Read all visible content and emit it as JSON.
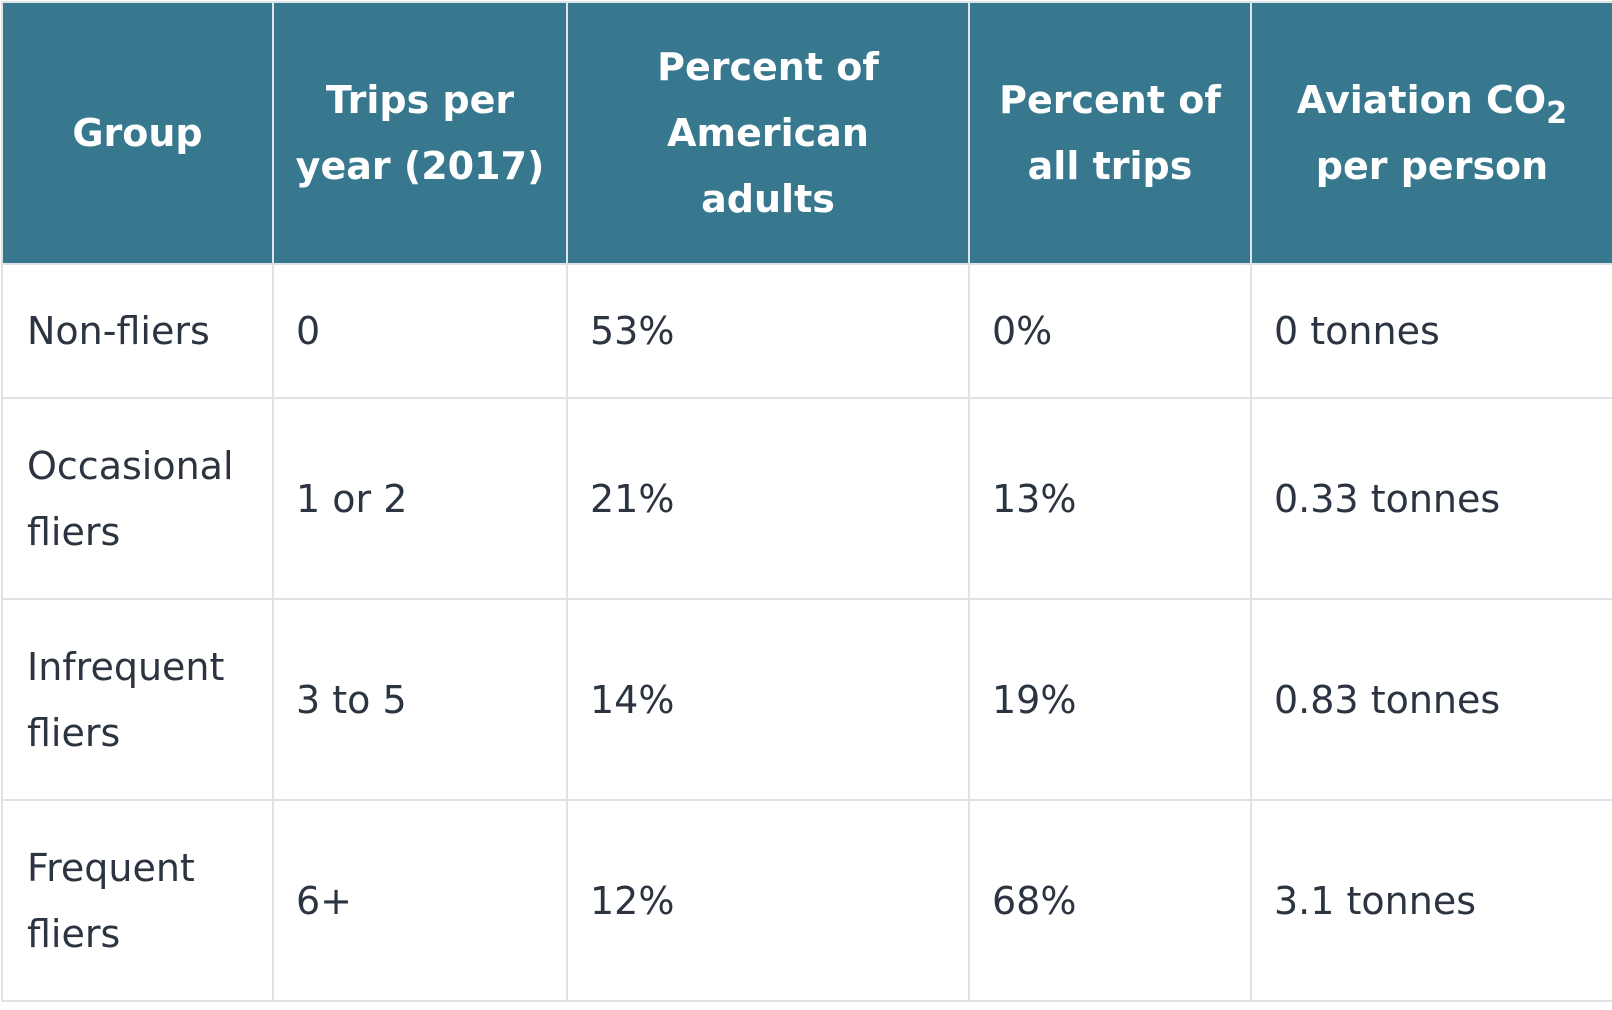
{
  "table": {
    "headers": [
      {
        "lines": [
          "Group"
        ]
      },
      {
        "lines": [
          "Trips per",
          "year (2017)"
        ]
      },
      {
        "lines": [
          "Percent of",
          "American",
          "adults"
        ]
      },
      {
        "lines": [
          "Percent of",
          "all trips"
        ]
      },
      {
        "line1_main": "Aviation CO",
        "line1_sub": "2",
        "line2": "per person"
      }
    ],
    "rows": [
      {
        "group": "Non-fliers",
        "trips": "0",
        "pct_adults": "53%",
        "pct_trips": "0%",
        "co2": "0 tonnes"
      },
      {
        "group": "Occasional fliers",
        "trips": "1 or 2",
        "pct_adults": "21%",
        "pct_trips": "13%",
        "co2": "0.33 tonnes"
      },
      {
        "group": "Infrequent fliers",
        "trips": "3 to 5",
        "pct_adults": "14%",
        "pct_trips": "19%",
        "co2": "0.83 tonnes"
      },
      {
        "group": "Frequent fliers",
        "trips": "6+",
        "pct_adults": "12%",
        "pct_trips": "68%",
        "co2": "3.1 tonnes"
      }
    ]
  },
  "colors": {
    "header_bg": "#37788f",
    "header_text": "#ffffff",
    "body_text": "#2b3440",
    "border": "#dfe3e6"
  }
}
